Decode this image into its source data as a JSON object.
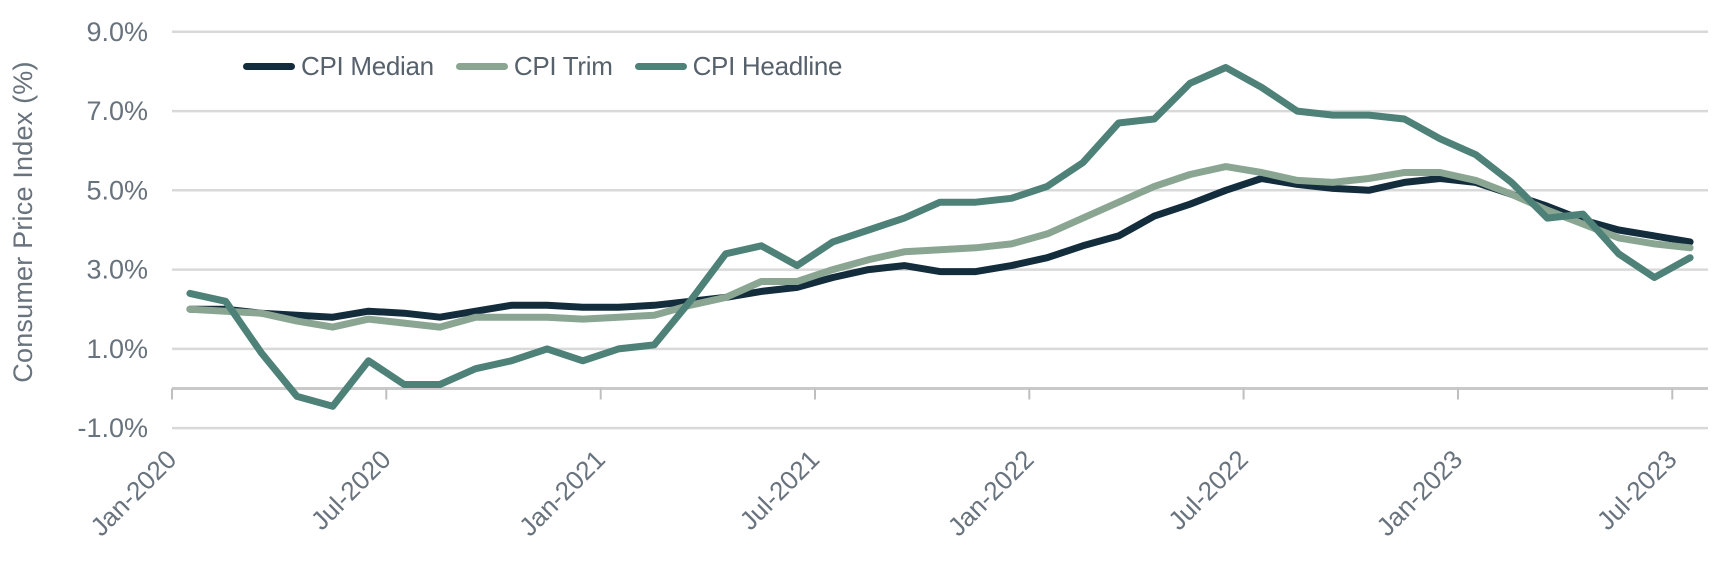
{
  "chart_data": {
    "type": "line",
    "title": "",
    "xlabel": "",
    "ylabel": "Consumer Price Index (%)",
    "ylim": [
      -1.0,
      9.0
    ],
    "grid": true,
    "legend_position": "top-left",
    "y_ticks": [
      9,
      7,
      5,
      3,
      1,
      -1
    ],
    "y_tick_labels": [
      "9.0%",
      "7.0%",
      "5.0%",
      "3.0%",
      "1.0%",
      "-1.0%"
    ],
    "x_tick_indices": [
      0,
      6,
      12,
      18,
      24,
      30,
      36,
      42
    ],
    "x_tick_labels": [
      "Jan-2020",
      "Jul-2020",
      "Jan-2021",
      "Jul-2021",
      "Jan-2022",
      "Jul-2022",
      "Jan-2023",
      "Jul-2023"
    ],
    "x": [
      "Jan-2020",
      "Feb-2020",
      "Mar-2020",
      "Apr-2020",
      "May-2020",
      "Jun-2020",
      "Jul-2020",
      "Aug-2020",
      "Sep-2020",
      "Oct-2020",
      "Nov-2020",
      "Dec-2020",
      "Jan-2021",
      "Feb-2021",
      "Mar-2021",
      "Apr-2021",
      "May-2021",
      "Jun-2021",
      "Jul-2021",
      "Aug-2021",
      "Sep-2021",
      "Oct-2021",
      "Nov-2021",
      "Dec-2021",
      "Jan-2022",
      "Feb-2022",
      "Mar-2022",
      "Apr-2022",
      "May-2022",
      "Jun-2022",
      "Jul-2022",
      "Aug-2022",
      "Sep-2022",
      "Oct-2022",
      "Nov-2022",
      "Dec-2022",
      "Jan-2023",
      "Feb-2023",
      "Mar-2023",
      "Apr-2023",
      "May-2023",
      "Jun-2023",
      "Jul-2023"
    ],
    "series": [
      {
        "name": "CPI Median",
        "color": "#132d3d",
        "values": [
          2.0,
          2.0,
          1.9,
          1.85,
          1.8,
          1.95,
          1.9,
          1.8,
          1.95,
          2.1,
          2.1,
          2.05,
          2.05,
          2.1,
          2.2,
          2.3,
          2.45,
          2.55,
          2.8,
          3.0,
          3.1,
          2.95,
          2.95,
          3.1,
          3.3,
          3.6,
          3.85,
          4.35,
          4.65,
          5.0,
          5.3,
          5.15,
          5.05,
          5.0,
          5.2,
          5.3,
          5.2,
          4.9,
          4.6,
          4.25,
          4.0,
          3.85,
          3.7
        ]
      },
      {
        "name": "CPI Trim",
        "color": "#8aa693",
        "values": [
          2.0,
          1.95,
          1.9,
          1.7,
          1.55,
          1.75,
          1.65,
          1.55,
          1.8,
          1.8,
          1.8,
          1.75,
          1.8,
          1.85,
          2.1,
          2.3,
          2.7,
          2.7,
          3.0,
          3.25,
          3.45,
          3.5,
          3.55,
          3.65,
          3.9,
          4.3,
          4.7,
          5.1,
          5.4,
          5.6,
          5.45,
          5.25,
          5.2,
          5.3,
          5.45,
          5.45,
          5.25,
          4.9,
          4.5,
          4.15,
          3.8,
          3.65,
          3.55
        ]
      },
      {
        "name": "CPI Headline",
        "color": "#4e8177",
        "values": [
          2.4,
          2.2,
          0.9,
          -0.2,
          -0.45,
          0.7,
          0.1,
          0.1,
          0.5,
          0.7,
          1.0,
          0.7,
          1.0,
          1.1,
          2.2,
          3.4,
          3.6,
          3.1,
          3.7,
          4.0,
          4.3,
          4.7,
          4.7,
          4.8,
          5.1,
          5.7,
          6.7,
          6.8,
          7.7,
          8.1,
          7.6,
          7.0,
          6.9,
          6.9,
          6.8,
          6.3,
          5.9,
          5.2,
          4.3,
          4.4,
          3.4,
          2.8,
          3.3
        ]
      }
    ]
  },
  "colors": {
    "background": "#ffffff",
    "gridline": "#d9d9d9",
    "zero_axis": "#c9c9c9",
    "tick_mark": "#bfbfbf",
    "axis_text": "#68737d",
    "legend_text": "#56616b"
  }
}
